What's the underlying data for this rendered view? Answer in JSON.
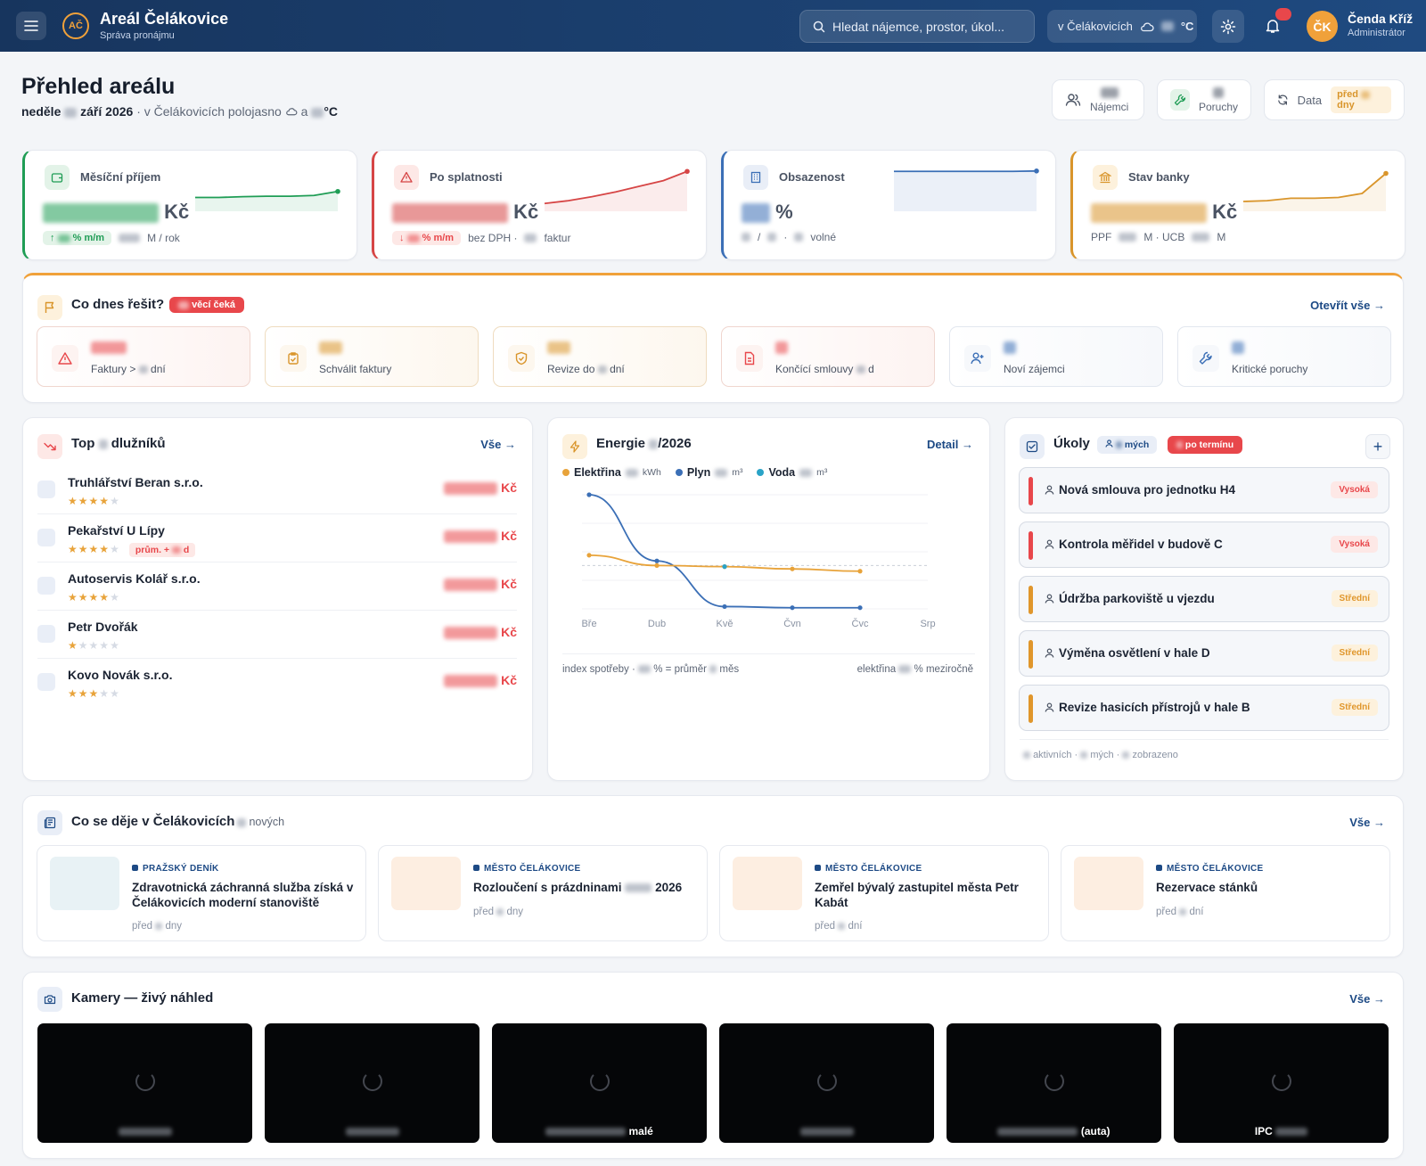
{
  "topbar": {
    "app_title": "Areál Čelákovice",
    "app_subtitle": "Správa pronájmu",
    "logo_text": "AČ",
    "search_placeholder": "Hledat nájemce, prostor, úkol...",
    "weather_location": "v Čelákovicích",
    "weather_unit": "°C",
    "user_initials": "ČK",
    "user_name": "Čenda Kříž",
    "user_role": "Administrátor"
  },
  "page": {
    "title": "Přehled areálu",
    "subtitle_day": "neděle",
    "subtitle_month": "září 2026",
    "subtitle_rest": "· v Čelákovicích polojasno",
    "subtitle_and": "a",
    "subtitle_unit": "°C"
  },
  "header_buttons": {
    "tenants_label": "Nájemci",
    "faults_label": "Poruchy",
    "data_label": "Data",
    "data_chip_before": "před",
    "data_chip_after": "dny"
  },
  "kpis": [
    {
      "label": "Měsíční příjem",
      "unit": "Kč",
      "chip": "% m/m",
      "foot": "M / rok",
      "accent": "#1f9d55",
      "trend": [
        0.3,
        0.3,
        0.32,
        0.33,
        0.33,
        0.35,
        0.45
      ]
    },
    {
      "label": "Po splatnosti",
      "unit": "Kč",
      "chip": "% m/m",
      "foot1": "bez DPH ·",
      "foot2": "faktur",
      "accent": "#d64545",
      "trend": [
        0.15,
        0.22,
        0.32,
        0.44,
        0.58,
        0.72,
        0.95
      ]
    },
    {
      "label": "Obsazenost",
      "unit": "%",
      "foot1": "/",
      "foot2": "·",
      "foot3": "volné",
      "accent": "#3b6fb6",
      "trend": [
        0.95,
        0.95,
        0.95,
        0.95,
        0.95,
        0.95,
        0.96
      ]
    },
    {
      "label": "Stav banky",
      "unit": "Kč",
      "foot1": "PPF",
      "foot2": "M · UCB",
      "foot3": "M",
      "accent": "#d9952b",
      "trend": [
        0.2,
        0.22,
        0.28,
        0.28,
        0.3,
        0.4,
        0.9
      ]
    }
  ],
  "today": {
    "title": "Co dnes řešit?",
    "badge": "věcí čeká",
    "open_all": "Otevřít vše →",
    "tiles": [
      {
        "label": "Faktury >",
        "label2": "dní",
        "color": "#e8474b",
        "bg": "#fdf3f1",
        "border": "#f0d6cf",
        "icon": "alert-triangle-icon"
      },
      {
        "label": "Schválit faktury",
        "color": "#d9952b",
        "bg": "#fdf7ee",
        "border": "#efdcbf",
        "icon": "clipboard-check-icon"
      },
      {
        "label": "Revize do",
        "label2": "dní",
        "color": "#d9952b",
        "bg": "#fdf7ee",
        "border": "#efdcbf",
        "icon": "shield-check-icon"
      },
      {
        "label": "Končící smlouvy",
        "label2": "d",
        "color": "#e8474b",
        "bg": "#fdf3f1",
        "border": "#f0d6cf",
        "icon": "document-icon"
      },
      {
        "label": "Noví zájemci",
        "color": "#3b6fb6",
        "bg": "#f6f8fb",
        "border": "#e2e7ef",
        "icon": "user-plus-icon"
      },
      {
        "label": "Kritické poruchy",
        "color": "#3b6fb6",
        "bg": "#f6f8fb",
        "border": "#e2e7ef",
        "icon": "wrench-icon"
      }
    ]
  },
  "debtors": {
    "title_prefix": "Top",
    "title_suffix": "dlužníků",
    "link": "Vše →",
    "unit": "Kč",
    "rows": [
      {
        "name": "Truhlářství Beran s.r.o.",
        "stars": 4
      },
      {
        "name": "Pekařství U Lípy",
        "stars": 4,
        "tag_pre": "prům. +",
        "tag_post": "d"
      },
      {
        "name": "Autoservis Kolář s.r.o.",
        "stars": 4
      },
      {
        "name": "Petr Dvořák",
        "stars": 1
      },
      {
        "name": "Kovo Novák s.r.o.",
        "stars": 3
      }
    ]
  },
  "energy": {
    "title_prefix": "Energie",
    "title_suffix": "/2026",
    "link": "Detail →",
    "legend": [
      {
        "name": "Elektřina",
        "unit": "kWh",
        "color": "#e8a33a"
      },
      {
        "name": "Plyn",
        "unit": "m³",
        "color": "#3b6fb6"
      },
      {
        "name": "Voda",
        "unit": "m³",
        "color": "#2aa3c7"
      }
    ],
    "foot_left1": "index spotřeby ·",
    "foot_left2": "% = průměr",
    "foot_left3": "měs",
    "foot_right1": "elektřina",
    "foot_right2": "% meziročně"
  },
  "chart_data": {
    "type": "line",
    "categories": [
      "Bře",
      "Dub",
      "Kvě",
      "Čvn",
      "Čvc",
      "Srp"
    ],
    "ylim": [
      0,
      100
    ],
    "grid": true,
    "reference_line": 38,
    "series": [
      {
        "name": "Plyn",
        "color": "#3b6fb6",
        "values": [
          100,
          42,
          2,
          1,
          1,
          null
        ]
      },
      {
        "name": "Elektřina",
        "color": "#e8a33a",
        "values": [
          47,
          38,
          37,
          35,
          33,
          null
        ]
      },
      {
        "name": "Voda",
        "color": "#2aa3c7",
        "values": [
          null,
          null,
          37,
          null,
          null,
          null
        ]
      }
    ]
  },
  "tasks": {
    "title": "Úkoly",
    "mine_chip": "mých",
    "overdue_chip": "po termínu",
    "add": "+",
    "footer1": "aktivních ·",
    "footer2": "mých ·",
    "footer3": "zobrazeno",
    "items": [
      {
        "title": "Nová smlouva pro jednotku H4",
        "priority": "Vysoká",
        "color": "#e8474b",
        "chip_bg": "#fde8e6"
      },
      {
        "title": "Kontrola měřidel v budově C",
        "priority": "Vysoká",
        "color": "#e8474b",
        "chip_bg": "#fde8e6"
      },
      {
        "title": "Údržba parkoviště u vjezdu",
        "priority": "Střední",
        "color": "#e0962b",
        "chip_bg": "#fdf1dc"
      },
      {
        "title": "Výměna osvětlení v hale D",
        "priority": "Střední",
        "color": "#e0962b",
        "chip_bg": "#fdf1dc"
      },
      {
        "title": "Revize hasicích přístrojů v hale B",
        "priority": "Střední",
        "color": "#e0962b",
        "chip_bg": "#fdf1dc"
      }
    ]
  },
  "news": {
    "title": "Co se děje v Čelákovicích",
    "count_suffix": "nových",
    "link": "Vše →",
    "items": [
      {
        "source": "PRAŽSKÝ DENÍK",
        "headline": "Zdravotnická záchranná služba získá v Čelákovicích moderní stanoviště",
        "time1": "před",
        "time2": "dny",
        "thumb": "#e8f2f5"
      },
      {
        "source": "MĚSTO ČELÁKOVICE",
        "headline_pre": "Rozloučení s prázdninami",
        "headline_post": "2026",
        "time1": "před",
        "time2": "dny",
        "thumb": "#fdeee1"
      },
      {
        "source": "MĚSTO ČELÁKOVICE",
        "headline": "Zemřel bývalý zastupitel města Petr Kabát",
        "time1": "před",
        "time2": "dní",
        "thumb": "#fdeee1"
      },
      {
        "source": "MĚSTO ČELÁKOVICE",
        "headline": "Rezervace stánků",
        "time1": "před",
        "time2": "dní",
        "thumb": "#fdeee1"
      }
    ]
  },
  "cameras": {
    "title": "Kamery — živý náhled",
    "link": "Vše →",
    "items": [
      {
        "label_post": ""
      },
      {
        "label_post": ""
      },
      {
        "label_post": "malé"
      },
      {
        "label_post": ""
      },
      {
        "label_post": "(auta)"
      },
      {
        "label_pre": "IPC"
      }
    ]
  }
}
